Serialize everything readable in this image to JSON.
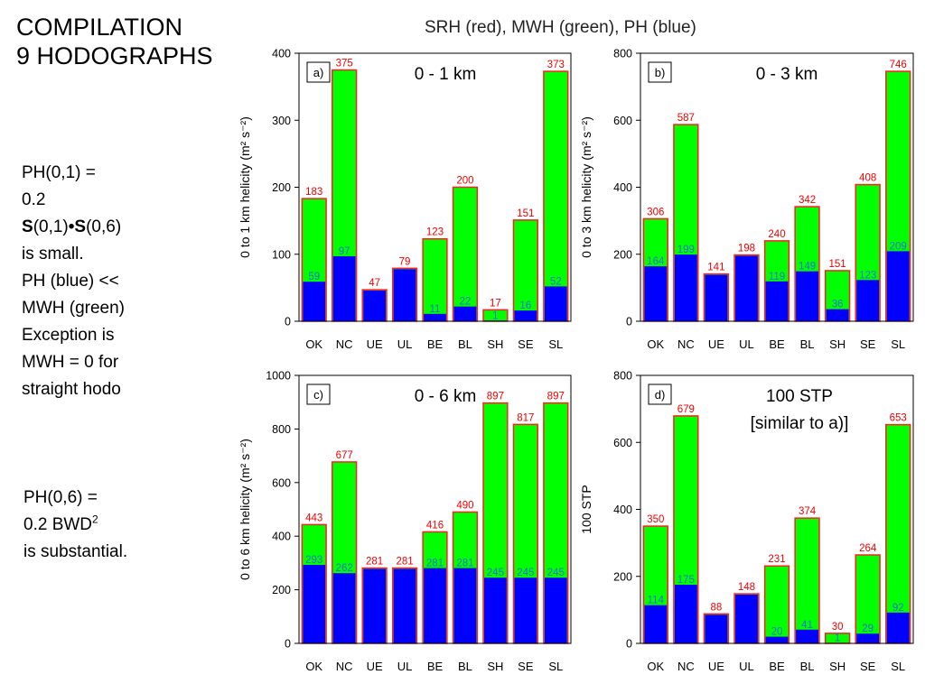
{
  "slide": {
    "title_line1": "COMPILATION",
    "title_line2": "9 HODOGRAPHS",
    "figure_title": "SRH (red), MWH (green), PH (blue)"
  },
  "notes": {
    "note1": {
      "line1": "PH(0,1) =",
      "line2": "0.2",
      "line3_bold_a": "S",
      "line3_mid": "(0,1)",
      "line3_dot": "•",
      "line3_bold_b": "S",
      "line3_end": "(0,6)",
      "line4": "is small.",
      "line5": "PH (blue) <<",
      "line6": "MWH (green)",
      "line7": "Exception is",
      "line8": "MWH = 0 for",
      "line9": "straight hodo"
    },
    "note2": {
      "line1": "PH(0,6) =",
      "line2_main": "0.2 BWD",
      "line2_sup": "2",
      "line3": "is substantial."
    }
  },
  "colors": {
    "srh_outline": "#ff2020",
    "mwh_fill": "#00ff00",
    "ph_fill": "#0000ff",
    "srh_label": "#ee0000",
    "ph_label": "#1e6fd8"
  },
  "chart_data": [
    {
      "type": "bar",
      "panel_label": "a)",
      "annotation_lines": [
        "0 - 1 km"
      ],
      "ylabel": "0 to 1 km helicity (m² s⁻²)",
      "categories": [
        "OK",
        "NC",
        "UE",
        "UL",
        "BE",
        "BL",
        "SH",
        "SE",
        "SL"
      ],
      "ylim": [
        0,
        400
      ],
      "yticks": [
        0,
        100,
        200,
        300,
        400
      ],
      "series": [
        {
          "name": "SRH",
          "values": [
            183,
            375,
            47,
            79,
            123,
            200,
            17,
            151,
            373
          ]
        },
        {
          "name": "PH",
          "values": [
            59,
            97,
            null,
            null,
            11,
            22,
            1,
            16,
            52
          ]
        }
      ]
    },
    {
      "type": "bar",
      "panel_label": "b)",
      "annotation_lines": [
        "0 - 3 km"
      ],
      "ylabel": "0 to 3 km helicity (m² s⁻²)",
      "categories": [
        "OK",
        "NC",
        "UE",
        "UL",
        "BE",
        "BL",
        "SH",
        "SE",
        "SL"
      ],
      "ylim": [
        0,
        800
      ],
      "yticks": [
        0,
        200,
        400,
        600,
        800
      ],
      "series": [
        {
          "name": "SRH",
          "values": [
            306,
            587,
            141,
            198,
            240,
            342,
            151,
            408,
            746
          ]
        },
        {
          "name": "PH",
          "values": [
            164,
            199,
            null,
            null,
            119,
            149,
            36,
            123,
            209
          ]
        }
      ]
    },
    {
      "type": "bar",
      "panel_label": "c)",
      "annotation_lines": [
        "0 - 6 km"
      ],
      "ylabel": "0 to 6 km helicity (m² s⁻²)",
      "categories": [
        "OK",
        "NC",
        "UE",
        "UL",
        "BE",
        "BL",
        "SH",
        "SE",
        "SL"
      ],
      "ylim": [
        0,
        1000
      ],
      "yticks": [
        0,
        200,
        400,
        600,
        800,
        1000
      ],
      "series": [
        {
          "name": "SRH",
          "values": [
            443,
            677,
            281,
            281,
            416,
            490,
            897,
            817,
            897
          ]
        },
        {
          "name": "PH",
          "values": [
            293,
            262,
            null,
            null,
            281,
            281,
            245,
            245,
            245
          ]
        }
      ]
    },
    {
      "type": "bar",
      "panel_label": "d)",
      "annotation_lines": [
        "100 STP",
        "[similar to a)]"
      ],
      "ylabel": "100 STP",
      "categories": [
        "OK",
        "NC",
        "UE",
        "UL",
        "BE",
        "BL",
        "SH",
        "SE",
        "SL"
      ],
      "ylim": [
        0,
        800
      ],
      "yticks": [
        0,
        200,
        400,
        600,
        800
      ],
      "series": [
        {
          "name": "SRH",
          "values": [
            350,
            679,
            88,
            148,
            231,
            374,
            30,
            264,
            653
          ]
        },
        {
          "name": "PH",
          "values": [
            114,
            175,
            null,
            null,
            20,
            41,
            1,
            29,
            92
          ]
        }
      ]
    }
  ]
}
